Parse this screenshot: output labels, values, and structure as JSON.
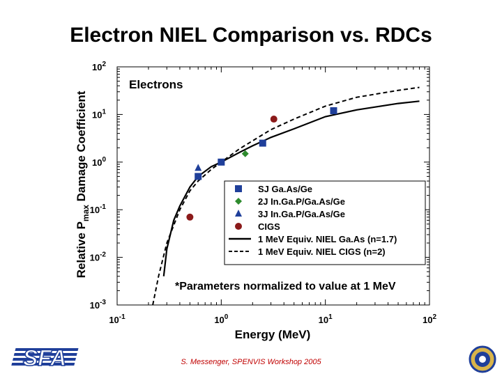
{
  "slide": {
    "title": "Electron NIEL Comparison vs. RDCs",
    "footer": "S. Messenger, SPENVIS Workshop 2005",
    "logo_text": "SFA"
  },
  "chart_data": {
    "type": "scatter",
    "title": "Electrons",
    "xlabel": "Energy (MeV)",
    "ylabel": "Relative P",
    "ylabel_sub": "max",
    "ylabel_suffix": " Damage Coefficient",
    "x_scale": "log",
    "y_scale": "log",
    "xlim": [
      0.1,
      100
    ],
    "ylim": [
      0.001,
      100
    ],
    "x_tick_labels": [
      {
        "value": 0.1,
        "base": "10",
        "exp": "-1"
      },
      {
        "value": 1,
        "base": "10",
        "exp": "0"
      },
      {
        "value": 10,
        "base": "10",
        "exp": "1"
      },
      {
        "value": 100,
        "base": "10",
        "exp": "2"
      }
    ],
    "y_tick_labels": [
      {
        "value": 100,
        "base": "10",
        "exp": "2"
      },
      {
        "value": 10,
        "base": "10",
        "exp": "1"
      },
      {
        "value": 1,
        "base": "10",
        "exp": "0"
      },
      {
        "value": 0.1,
        "base": "10",
        "exp": "-1"
      },
      {
        "value": 0.01,
        "base": "10",
        "exp": "-2"
      },
      {
        "value": 0.001,
        "base": "10",
        "exp": "-3"
      }
    ],
    "grid": false,
    "legend_position": "lower-right",
    "series": [
      {
        "name": "SJ Ga.As/Ge",
        "kind": "points",
        "marker": "square",
        "color": "#1f3f9a",
        "points": [
          [
            0.6,
            0.5
          ],
          [
            1.0,
            1.0
          ],
          [
            2.5,
            2.5
          ],
          [
            12.0,
            12.0
          ]
        ]
      },
      {
        "name": "2J In.Ga.P/Ga.As/Ge",
        "kind": "points",
        "marker": "diamond",
        "color": "#2e8b2e",
        "points": [
          [
            1.7,
            1.5
          ]
        ]
      },
      {
        "name": "3J In.Ga.P/Ga.As/Ge",
        "kind": "points",
        "marker": "triangle",
        "color": "#1f3f9a",
        "points": [
          [
            0.6,
            0.75
          ]
        ]
      },
      {
        "name": "CIGS",
        "kind": "points",
        "marker": "circle",
        "color": "#8b1a1a",
        "points": [
          [
            0.5,
            0.07
          ],
          [
            3.2,
            8.0
          ]
        ]
      },
      {
        "name": "1 MeV Equiv. NIEL Ga.As (n=1.7)",
        "kind": "line",
        "style": "solid",
        "color": "#000000",
        "points": [
          [
            0.28,
            0.004
          ],
          [
            0.3,
            0.015
          ],
          [
            0.35,
            0.06
          ],
          [
            0.4,
            0.12
          ],
          [
            0.5,
            0.3
          ],
          [
            0.6,
            0.5
          ],
          [
            0.8,
            0.8
          ],
          [
            1.0,
            1.0
          ],
          [
            1.5,
            1.6
          ],
          [
            2.0,
            2.2
          ],
          [
            3.0,
            3.3
          ],
          [
            5.0,
            5.0
          ],
          [
            10.0,
            9.0
          ],
          [
            20.0,
            12.5
          ],
          [
            50.0,
            17.0
          ],
          [
            80.0,
            19.0
          ]
        ]
      },
      {
        "name": "1 MeV Equiv. NIEL CIGS (n=2)",
        "kind": "line",
        "style": "dashed",
        "color": "#000000",
        "points": [
          [
            0.22,
            0.001
          ],
          [
            0.25,
            0.004
          ],
          [
            0.3,
            0.02
          ],
          [
            0.4,
            0.1
          ],
          [
            0.5,
            0.25
          ],
          [
            0.6,
            0.4
          ],
          [
            0.8,
            0.7
          ],
          [
            1.0,
            1.0
          ],
          [
            1.5,
            1.9
          ],
          [
            2.0,
            2.8
          ],
          [
            3.0,
            4.8
          ],
          [
            5.0,
            8.0
          ],
          [
            10.0,
            15.0
          ],
          [
            20.0,
            23.0
          ],
          [
            50.0,
            32.0
          ],
          [
            80.0,
            37.0
          ]
        ]
      }
    ],
    "annotation": "*Parameters normalized to value at 1 MeV"
  }
}
